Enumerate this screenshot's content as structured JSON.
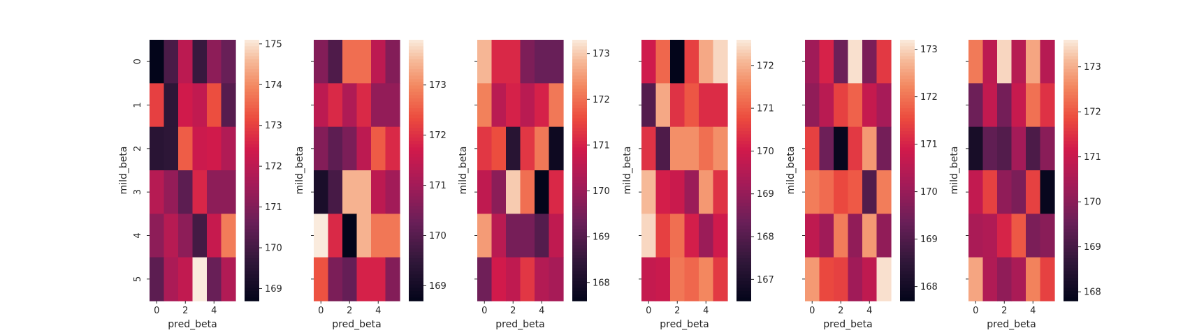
{
  "chart_data": [
    {
      "type": "heatmap",
      "xlabel": "pred_beta",
      "ylabel": "mild_beta",
      "x_ticks": [
        "0",
        "2",
        "4"
      ],
      "y_ticks": [
        "0",
        "1",
        "2",
        "3",
        "4",
        "5"
      ],
      "values": [
        [
          168.7,
          170.1,
          172.0,
          169.8,
          171.2,
          170.6
        ],
        [
          173.0,
          169.6,
          172.4,
          172.1,
          173.2,
          170.3
        ],
        [
          169.5,
          169.6,
          173.4,
          172.3,
          172.4,
          171.8
        ],
        [
          171.9,
          171.3,
          170.4,
          172.6,
          171.2,
          171.2
        ],
        [
          171.2,
          171.9,
          171.2,
          170.0,
          172.2,
          173.8
        ],
        [
          170.4,
          171.7,
          172.1,
          175.1,
          170.6,
          171.8
        ]
      ],
      "vmin": 168.7,
      "vmax": 175.1,
      "colorbar_ticks": [
        "169",
        "170",
        "171",
        "172",
        "173",
        "174",
        "175"
      ]
    },
    {
      "type": "heatmap",
      "xlabel": "pred_beta",
      "ylabel": "mild_beta",
      "x_ticks": [
        "0",
        "2",
        "4"
      ],
      "y_ticks": [
        "0",
        "1",
        "2",
        "3",
        "4",
        "5"
      ],
      "values": [
        [
          170.6,
          169.9,
          172.7,
          172.7,
          171.4,
          170.6
        ],
        [
          171.4,
          171.9,
          171.2,
          171.9,
          170.8,
          170.8
        ],
        [
          170.6,
          170.1,
          170.5,
          171.4,
          172.5,
          171.9
        ],
        [
          169.1,
          169.8,
          173.4,
          173.4,
          171.4,
          171.0
        ],
        [
          173.9,
          171.9,
          168.7,
          173.4,
          172.8,
          172.8
        ],
        [
          172.4,
          170.5,
          170.2,
          171.8,
          171.8,
          170.6
        ]
      ],
      "vmin": 168.7,
      "vmax": 173.9,
      "colorbar_ticks": [
        "169",
        "170",
        "171",
        "172",
        "173"
      ]
    },
    {
      "type": "heatmap",
      "xlabel": "pred_beta",
      "ylabel": "mild_beta",
      "x_ticks": [
        "0",
        "2",
        "4"
      ],
      "y_ticks": [
        "0",
        "1",
        "2",
        "3",
        "4",
        "5"
      ],
      "values": [
        [
          172.8,
          171.1,
          171.1,
          169.6,
          169.3,
          169.3
        ],
        [
          172.2,
          170.5,
          171.0,
          170.5,
          171.0,
          172.1
        ],
        [
          171.3,
          171.6,
          168.3,
          171.3,
          172.1,
          167.8
        ],
        [
          170.6,
          169.8,
          173.0,
          172.0,
          167.6,
          171.1
        ],
        [
          172.5,
          170.5,
          169.5,
          169.5,
          169.0,
          170.6
        ],
        [
          169.4,
          170.9,
          170.6,
          171.3,
          170.4,
          170.2
        ]
      ],
      "vmin": 167.6,
      "vmax": 173.3,
      "colorbar_ticks": [
        "168",
        "169",
        "170",
        "171",
        "172",
        "173"
      ]
    },
    {
      "type": "heatmap",
      "xlabel": "pred_beta",
      "ylabel": "mild_beta",
      "x_ticks": [
        "0",
        "2",
        "4"
      ],
      "y_ticks": [
        "0",
        "1",
        "2",
        "3",
        "4",
        "5"
      ],
      "values": [
        [
          170.0,
          171.1,
          166.5,
          170.6,
          171.9,
          172.4
        ],
        [
          168.0,
          171.9,
          170.4,
          170.9,
          170.3,
          170.3
        ],
        [
          170.4,
          167.9,
          171.6,
          171.6,
          171.2,
          171.6
        ],
        [
          172.1,
          170.1,
          169.9,
          169.1,
          171.7,
          170.4
        ],
        [
          172.4,
          170.6,
          171.2,
          170.1,
          169.1,
          170.0
        ],
        [
          169.8,
          169.9,
          171.3,
          171.1,
          171.5,
          170.5
        ]
      ],
      "vmin": 166.5,
      "vmax": 172.6,
      "colorbar_ticks": [
        "167",
        "168",
        "169",
        "170",
        "171",
        "172"
      ]
    },
    {
      "type": "heatmap",
      "xlabel": "pred_beta",
      "ylabel": "mild_beta",
      "x_ticks": [
        "0",
        "2",
        "4"
      ],
      "y_ticks": [
        "0",
        "1",
        "2",
        "3",
        "4",
        "5"
      ],
      "values": [
        [
          170.1,
          171.0,
          169.4,
          173.1,
          169.6,
          171.3
        ],
        [
          169.9,
          170.5,
          171.4,
          171.8,
          170.7,
          170.2
        ],
        [
          171.4,
          169.4,
          167.8,
          171.3,
          172.4,
          169.5
        ],
        [
          172.1,
          171.9,
          171.5,
          171.7,
          169.0,
          172.1
        ],
        [
          170.6,
          170.1,
          172.1,
          169.9,
          172.4,
          169.9
        ],
        [
          172.4,
          171.5,
          171.4,
          170.1,
          170.6,
          173.1
        ]
      ],
      "vmin": 167.7,
      "vmax": 173.2,
      "colorbar_ticks": [
        "168",
        "169",
        "170",
        "171",
        "172",
        "173"
      ]
    },
    {
      "type": "heatmap",
      "xlabel": "pred_beta",
      "ylabel": "mild_beta",
      "x_ticks": [
        "0",
        "2",
        "4"
      ],
      "y_ticks": [
        "0",
        "1",
        "2",
        "3",
        "4",
        "5"
      ],
      "values": [
        [
          172.4,
          170.8,
          173.4,
          170.7,
          172.9,
          170.7
        ],
        [
          169.6,
          170.9,
          169.7,
          171.0,
          172.3,
          171.5
        ],
        [
          168.2,
          169.4,
          169.2,
          170.4,
          169.1,
          170.0
        ],
        [
          170.9,
          171.7,
          170.1,
          169.8,
          171.7,
          167.9
        ],
        [
          170.5,
          170.6,
          171.3,
          172.0,
          169.8,
          170.0
        ],
        [
          172.9,
          170.6,
          170.1,
          170.5,
          172.5,
          171.7
        ]
      ],
      "vmin": 167.8,
      "vmax": 173.6,
      "colorbar_ticks": [
        "168",
        "169",
        "170",
        "171",
        "172",
        "173"
      ]
    }
  ]
}
